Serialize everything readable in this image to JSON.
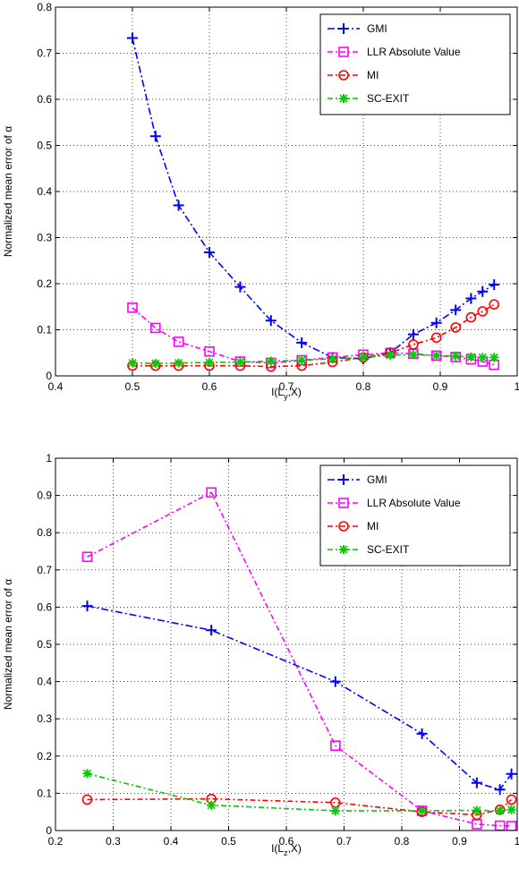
{
  "chart_data": [
    {
      "type": "line",
      "xlabel_main": "I(L",
      "xlabel_sub": "y",
      "xlabel_end": ",X)",
      "ylabel": "Normalized mean error of α",
      "xlim": [
        0.4,
        1
      ],
      "ylim": [
        0,
        0.8
      ],
      "xticks": [
        "0.4",
        "0.5",
        "0.6",
        "0.7",
        "0.8",
        "0.9",
        "1"
      ],
      "yticks": [
        "0",
        "0.1",
        "0.2",
        "0.3",
        "0.4",
        "0.5",
        "0.6",
        "0.7",
        "0.8"
      ],
      "grid": true,
      "legend_position": "top-right",
      "series": [
        {
          "name": "GMI",
          "color": "#0000ff",
          "marker": "plus",
          "x": [
            0.5,
            0.53,
            0.56,
            0.6,
            0.64,
            0.68,
            0.72,
            0.76,
            0.8,
            0.835,
            0.865,
            0.895,
            0.92,
            0.94,
            0.955,
            0.97
          ],
          "y": [
            0.733,
            0.52,
            0.37,
            0.268,
            0.193,
            0.12,
            0.072,
            0.04,
            0.037,
            0.05,
            0.09,
            0.115,
            0.143,
            0.168,
            0.183,
            0.198
          ]
        },
        {
          "name": "LLR Absolute Value",
          "color": "#ff00ff",
          "marker": "square",
          "x": [
            0.5,
            0.53,
            0.56,
            0.6,
            0.64,
            0.68,
            0.72,
            0.76,
            0.8,
            0.835,
            0.865,
            0.895,
            0.92,
            0.94,
            0.955,
            0.97
          ],
          "y": [
            0.148,
            0.104,
            0.074,
            0.053,
            0.031,
            0.028,
            0.034,
            0.04,
            0.046,
            0.05,
            0.048,
            0.044,
            0.041,
            0.036,
            0.031,
            0.024
          ]
        },
        {
          "name": "MI",
          "color": "#ff0000",
          "marker": "circle",
          "x": [
            0.5,
            0.53,
            0.56,
            0.6,
            0.64,
            0.68,
            0.72,
            0.76,
            0.8,
            0.835,
            0.865,
            0.895,
            0.92,
            0.94,
            0.955,
            0.97
          ],
          "y": [
            0.022,
            0.022,
            0.022,
            0.022,
            0.022,
            0.02,
            0.022,
            0.03,
            0.04,
            0.05,
            0.068,
            0.083,
            0.105,
            0.127,
            0.14,
            0.155
          ]
        },
        {
          "name": "SC-EXIT",
          "color": "#00cc00",
          "marker": "star",
          "x": [
            0.5,
            0.53,
            0.56,
            0.6,
            0.64,
            0.68,
            0.72,
            0.76,
            0.8,
            0.835,
            0.865,
            0.895,
            0.92,
            0.94,
            0.955,
            0.97
          ],
          "y": [
            0.028,
            0.027,
            0.028,
            0.029,
            0.03,
            0.032,
            0.034,
            0.037,
            0.04,
            0.045,
            0.046,
            0.044,
            0.043,
            0.041,
            0.04,
            0.04
          ]
        }
      ]
    },
    {
      "type": "line",
      "xlabel_main": "I(L",
      "xlabel_sub": "z",
      "xlabel_end": ",X)",
      "ylabel": "Normalized mean error of α",
      "xlim": [
        0.2,
        1
      ],
      "ylim": [
        0,
        1
      ],
      "xticks": [
        "0.2",
        "0.3",
        "0.4",
        "0.5",
        "0.6",
        "0.7",
        "0.8",
        "0.9",
        "1"
      ],
      "yticks": [
        "0",
        "0.1",
        "0.2",
        "0.3",
        "0.4",
        "0.5",
        "0.6",
        "0.7",
        "0.8",
        "0.9",
        "1"
      ],
      "grid": true,
      "legend_position": "top-right",
      "series": [
        {
          "name": "GMI",
          "color": "#0000ff",
          "marker": "plus",
          "x": [
            0.255,
            0.47,
            0.685,
            0.835,
            0.93,
            0.97,
            0.99
          ],
          "y": [
            0.603,
            0.538,
            0.4,
            0.26,
            0.128,
            0.11,
            0.152
          ]
        },
        {
          "name": "LLR Absolute Value",
          "color": "#ff00ff",
          "marker": "square",
          "x": [
            0.255,
            0.47,
            0.685,
            0.835,
            0.93,
            0.97,
            0.99
          ],
          "y": [
            0.735,
            0.908,
            0.228,
            0.053,
            0.017,
            0.013,
            0.012
          ]
        },
        {
          "name": "MI",
          "color": "#ff0000",
          "marker": "circle",
          "x": [
            0.255,
            0.47,
            0.685,
            0.835,
            0.93,
            0.97,
            0.99
          ],
          "y": [
            0.083,
            0.085,
            0.075,
            0.05,
            0.042,
            0.056,
            0.083
          ]
        },
        {
          "name": "SC-EXIT",
          "color": "#00cc00",
          "marker": "star",
          "x": [
            0.255,
            0.47,
            0.685,
            0.835,
            0.93,
            0.97,
            0.99
          ],
          "y": [
            0.153,
            0.068,
            0.053,
            0.053,
            0.054,
            0.053,
            0.056
          ]
        }
      ]
    }
  ]
}
